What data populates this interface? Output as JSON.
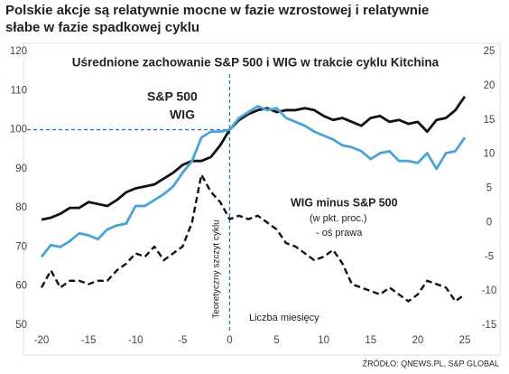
{
  "chart_data": {
    "type": "line",
    "title_lines": [
      "Polskie akcje są relatywnie mocne w fazie wzrostowej i relatywnie",
      "słabe w fazie spadkowej cyklu"
    ],
    "subtitle": "Uśrednione zachowanie S&P 500 i WIG w trakcie cyklu Kitchina",
    "x": [
      -20,
      -19,
      -18,
      -17,
      -16,
      -15,
      -14,
      -13,
      -12,
      -11,
      -10,
      -9,
      -8,
      -7,
      -6,
      -5,
      -4,
      -3,
      -2,
      -1,
      0,
      1,
      2,
      3,
      4,
      5,
      6,
      7,
      8,
      9,
      10,
      11,
      12,
      13,
      14,
      15,
      16,
      17,
      18,
      19,
      20,
      21,
      22,
      23,
      24,
      25
    ],
    "series": [
      {
        "name": "S&P 500",
        "color": "#111111",
        "dashed": false,
        "values": [
          77,
          77.5,
          78.5,
          80,
          80,
          81.5,
          81,
          80.5,
          82,
          84,
          85,
          85.5,
          86,
          87.5,
          89,
          91,
          92,
          92,
          93,
          96,
          100,
          102.5,
          104,
          105,
          105.5,
          104.5,
          105,
          105,
          105.5,
          105,
          103.5,
          102.5,
          103,
          102,
          101,
          103,
          103.5,
          102,
          102.5,
          101.5,
          102,
          99.5,
          102.5,
          103,
          105,
          108.5
        ]
      },
      {
        "name": "WIG",
        "color": "#4aa3d8",
        "dashed": false,
        "values": [
          67.5,
          70.5,
          70,
          71.5,
          73.5,
          73,
          72,
          74.5,
          75.5,
          76,
          80.5,
          80.5,
          82,
          83.5,
          85.5,
          89,
          92,
          98,
          99.5,
          99.5,
          100,
          103,
          104.5,
          106,
          105,
          105.5,
          103,
          102,
          101,
          99.5,
          98.5,
          97.5,
          96,
          95.5,
          94.5,
          92.5,
          94,
          94.5,
          92,
          92,
          91.5,
          94,
          90,
          94,
          94.5,
          98
        ]
      },
      {
        "name": "WIG minus S&P 500",
        "color": "#111111",
        "dashed": true,
        "axis": "y2",
        "values": [
          -9.5,
          -7,
          -9.5,
          -8.5,
          -8.5,
          -9,
          -8.5,
          -8.5,
          -7,
          -6,
          -4.5,
          -5,
          -3.5,
          -5.5,
          -4.5,
          -3.5,
          0,
          7,
          4.5,
          3,
          0.5,
          1,
          0.5,
          1,
          0,
          -1,
          -3,
          -3.5,
          -4.5,
          -5.5,
          -5,
          -4,
          -6,
          -9,
          -9.5,
          -10,
          -10.5,
          -9.5,
          -10.5,
          -11.5,
          -10.5,
          -8.5,
          -9,
          -9.5,
          -11.5,
          -10.5
        ]
      }
    ],
    "diff_notes": [
      "(w pkt. proc.)",
      "- oś prawa"
    ],
    "peak_label": "Teoretyczny szczyt cyklu",
    "xlabel": "Liczba miesięcy",
    "source": "ŹRÓDŁO: QNEWS.PL, S&P GLOBAL",
    "reference": {
      "x": 0,
      "y": 100,
      "color": "#3b6fb6"
    },
    "xlim": [
      -20,
      25
    ],
    "xticks": [
      -20,
      -15,
      -10,
      -5,
      0,
      5,
      10,
      15,
      20,
      25
    ],
    "ylim": [
      50,
      120
    ],
    "yticks": [
      50,
      60,
      70,
      80,
      90,
      100,
      110,
      120
    ],
    "y2lim": [
      -15,
      25
    ],
    "y2ticks": [
      -15,
      -10,
      -5,
      0,
      5,
      10,
      15,
      20,
      25
    ]
  }
}
